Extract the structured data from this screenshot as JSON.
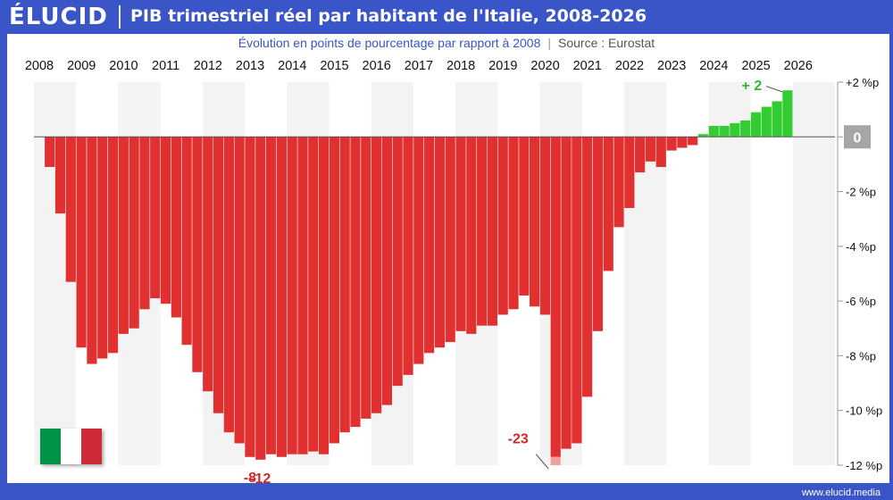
{
  "header": {
    "logo": "ÉLUCID",
    "title": "PIB trimestriel réel par habitant de l'Italie, 2008-2026",
    "subtitle": "Évolution en points de pourcentage par rapport à 2008",
    "source": "Source : Eurostat"
  },
  "footer": {
    "site": "www.elucid.media"
  },
  "flag": {
    "colors": [
      "#009246",
      "#ffffff",
      "#ce2b37"
    ]
  },
  "colors": {
    "negative": "#e03030",
    "positive": "#33cc33",
    "brand": "#3a55c8",
    "zero_badge": "#a6a6a6"
  },
  "chart_data": {
    "type": "bar",
    "title": "PIB trimestriel réel par habitant de l'Italie, 2008-2026",
    "subtitle": "Évolution en points de pourcentage par rapport à 2008",
    "x_tick_labels": [
      "2008",
      "2009",
      "2010",
      "2011",
      "2012",
      "2013",
      "2014",
      "2015",
      "2016",
      "2017",
      "2018",
      "2019",
      "2020",
      "2021",
      "2022",
      "2023",
      "2024",
      "2025",
      "2026"
    ],
    "y_tick_labels": [
      "+2 %p",
      "0",
      "-2 %p",
      "-4 %p",
      "-6 %p",
      "-8 %p",
      "-10 %p",
      "-12 %p"
    ],
    "y_ticks": [
      2,
      0,
      -2,
      -4,
      -6,
      -8,
      -10,
      -12
    ],
    "ylim": [
      -12,
      2
    ],
    "unit": "%p",
    "quarterly_start": "2008 T2",
    "values": [
      -1.1,
      -2.8,
      -5.3,
      -7.7,
      -8.3,
      -8.1,
      -7.9,
      -7.2,
      -7.0,
      -6.3,
      -5.9,
      -6.1,
      -6.6,
      -7.6,
      -8.6,
      -9.3,
      -10.1,
      -10.8,
      -11.2,
      -11.7,
      -11.8,
      -11.6,
      -11.7,
      -11.6,
      -11.6,
      -11.5,
      -11.6,
      -11.2,
      -10.8,
      -10.6,
      -10.3,
      -10.1,
      -9.8,
      -9.1,
      -8.7,
      -8.3,
      -7.9,
      -7.7,
      -7.5,
      -7.1,
      -7.2,
      -6.9,
      -6.9,
      -6.5,
      -6.3,
      -5.8,
      -6.2,
      -6.5,
      -11.7,
      -11.4,
      -11.2,
      -9.5,
      -7.1,
      -4.9,
      -3.3,
      -2.6,
      -1.3,
      -0.9,
      -1.1,
      -0.5,
      -0.4,
      -0.3,
      0.1,
      0.4,
      0.4,
      0.5,
      0.6,
      0.9,
      1.1,
      1.3,
      1.7
    ],
    "highlight_value": -23,
    "annotations": [
      {
        "label": "-8",
        "value": -8
      },
      {
        "label": "-12",
        "value": -12
      },
      {
        "label": "-23",
        "value": -23
      },
      {
        "label": "+ 2",
        "value": 2
      }
    ],
    "zero_label": "0",
    "grid": "alternating-year-bands",
    "legend": "none"
  }
}
